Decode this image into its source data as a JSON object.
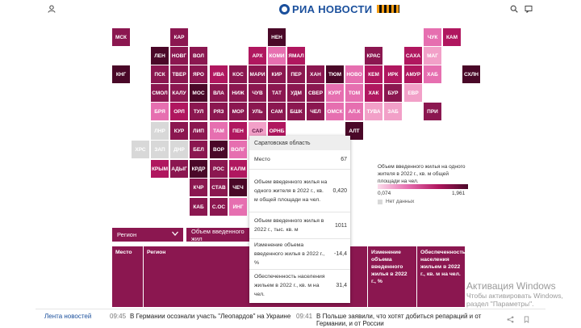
{
  "header": {
    "logo_text": "РИА НОВОСТИ"
  },
  "map": {
    "tiles": [
      {
        "label": "МСК",
        "col": 0,
        "row": 0,
        "color": "#8b1750",
        "text": "#ffffff"
      },
      {
        "label": "КАР",
        "col": 3,
        "row": 0,
        "color": "#8b1750",
        "text": "#ffffff"
      },
      {
        "label": "НЕН",
        "col": 8,
        "row": 0,
        "color": "#4a0828",
        "text": "#ffffff"
      },
      {
        "label": "ЧУК",
        "col": 16,
        "row": 0,
        "color": "#e66fb0",
        "text": "#ffffff"
      },
      {
        "label": "КАМ",
        "col": 17,
        "row": 0,
        "color": "#b0175f",
        "text": "#ffffff"
      },
      {
        "label": "ЛЕН",
        "col": 2,
        "row": 1,
        "color": "#4a0828",
        "text": "#ffffff"
      },
      {
        "label": "НОВГ",
        "col": 3,
        "row": 1,
        "color": "#8b1750",
        "text": "#ffffff"
      },
      {
        "label": "ВОЛ",
        "col": 4,
        "row": 1,
        "color": "#8b1750",
        "text": "#ffffff"
      },
      {
        "label": "АРХ",
        "col": 7,
        "row": 1,
        "color": "#b0175f",
        "text": "#ffffff"
      },
      {
        "label": "КОМИ",
        "col": 8,
        "row": 1,
        "color": "#e66fb0",
        "text": "#ffffff"
      },
      {
        "label": "ЯМАЛ",
        "col": 9,
        "row": 1,
        "color": "#b0175f",
        "text": "#ffffff"
      },
      {
        "label": "КРАС",
        "col": 13,
        "row": 1,
        "color": "#8b1750",
        "text": "#ffffff"
      },
      {
        "label": "САХА",
        "col": 15,
        "row": 1,
        "color": "#b0175f",
        "text": "#ffffff"
      },
      {
        "label": "МАГ",
        "col": 16,
        "row": 1,
        "color": "#f2a0c8",
        "text": "#ffffff"
      },
      {
        "label": "КНГ",
        "col": 0,
        "row": 2,
        "color": "#4a0828",
        "text": "#ffffff"
      },
      {
        "label": "ПСК",
        "col": 2,
        "row": 2,
        "color": "#8b1750",
        "text": "#ffffff"
      },
      {
        "label": "ТВЕР",
        "col": 3,
        "row": 2,
        "color": "#8b1750",
        "text": "#ffffff"
      },
      {
        "label": "ЯРО",
        "col": 4,
        "row": 2,
        "color": "#8b1750",
        "text": "#ffffff"
      },
      {
        "label": "ИВА",
        "col": 5,
        "row": 2,
        "color": "#b0175f",
        "text": "#ffffff"
      },
      {
        "label": "КОС",
        "col": 6,
        "row": 2,
        "color": "#8b1750",
        "text": "#ffffff"
      },
      {
        "label": "МАРИ",
        "col": 7,
        "row": 2,
        "color": "#8b1750",
        "text": "#ffffff"
      },
      {
        "label": "КИР",
        "col": 8,
        "row": 2,
        "color": "#8b1750",
        "text": "#ffffff"
      },
      {
        "label": "ПЕР",
        "col": 9,
        "row": 2,
        "color": "#8b1750",
        "text": "#ffffff"
      },
      {
        "label": "ХАН",
        "col": 10,
        "row": 2,
        "color": "#8b1750",
        "text": "#ffffff"
      },
      {
        "label": "ТЮМ",
        "col": 11,
        "row": 2,
        "color": "#4a0828",
        "text": "#ffffff"
      },
      {
        "label": "НОВО",
        "col": 12,
        "row": 2,
        "color": "#e66fb0",
        "text": "#ffffff"
      },
      {
        "label": "КЕМ",
        "col": 13,
        "row": 2,
        "color": "#b0175f",
        "text": "#ffffff"
      },
      {
        "label": "ИРК",
        "col": 14,
        "row": 2,
        "color": "#b0175f",
        "text": "#ffffff"
      },
      {
        "label": "АМУР",
        "col": 15,
        "row": 2,
        "color": "#b0175f",
        "text": "#ffffff"
      },
      {
        "label": "ХАБ",
        "col": 16,
        "row": 2,
        "color": "#e66fb0",
        "text": "#ffffff"
      },
      {
        "label": "СХЛН",
        "col": 18,
        "row": 2,
        "color": "#4a0828",
        "text": "#ffffff"
      },
      {
        "label": "СМОЛ",
        "col": 2,
        "row": 3,
        "color": "#8b1750",
        "text": "#ffffff"
      },
      {
        "label": "КАЛУ",
        "col": 3,
        "row": 3,
        "color": "#8b1750",
        "text": "#ffffff"
      },
      {
        "label": "МОС",
        "col": 4,
        "row": 3,
        "color": "#4a0828",
        "text": "#ffffff"
      },
      {
        "label": "ВЛА",
        "col": 5,
        "row": 3,
        "color": "#8b1750",
        "text": "#ffffff"
      },
      {
        "label": "НИЖ",
        "col": 6,
        "row": 3,
        "color": "#8b1750",
        "text": "#ffffff"
      },
      {
        "label": "ЧУВ",
        "col": 7,
        "row": 3,
        "color": "#8b1750",
        "text": "#ffffff"
      },
      {
        "label": "ТАТ",
        "col": 8,
        "row": 3,
        "color": "#8b1750",
        "text": "#ffffff"
      },
      {
        "label": "УДМ",
        "col": 9,
        "row": 3,
        "color": "#8b1750",
        "text": "#ffffff"
      },
      {
        "label": "СВЕР",
        "col": 10,
        "row": 3,
        "color": "#8b1750",
        "text": "#ffffff"
      },
      {
        "label": "КУРГ",
        "col": 11,
        "row": 3,
        "color": "#e66fb0",
        "text": "#ffffff"
      },
      {
        "label": "ТОМ",
        "col": 12,
        "row": 3,
        "color": "#e66fb0",
        "text": "#ffffff"
      },
      {
        "label": "ХАК",
        "col": 13,
        "row": 3,
        "color": "#b0175f",
        "text": "#ffffff"
      },
      {
        "label": "БУР",
        "col": 14,
        "row": 3,
        "color": "#8b1750",
        "text": "#ffffff"
      },
      {
        "label": "ЕВР",
        "col": 15,
        "row": 3,
        "color": "#f2a0c8",
        "text": "#ffffff"
      },
      {
        "label": "БРЯ",
        "col": 2,
        "row": 4,
        "color": "#e66fb0",
        "text": "#ffffff"
      },
      {
        "label": "ОРЛ",
        "col": 3,
        "row": 4,
        "color": "#b0175f",
        "text": "#ffffff"
      },
      {
        "label": "ТУЛ",
        "col": 4,
        "row": 4,
        "color": "#8b1750",
        "text": "#ffffff"
      },
      {
        "label": "РЯЗ",
        "col": 5,
        "row": 4,
        "color": "#8b1750",
        "text": "#ffffff"
      },
      {
        "label": "МОР",
        "col": 6,
        "row": 4,
        "color": "#8b1750",
        "text": "#ffffff"
      },
      {
        "label": "УЛЬ",
        "col": 7,
        "row": 4,
        "color": "#8b1750",
        "text": "#ffffff"
      },
      {
        "label": "САМ",
        "col": 8,
        "row": 4,
        "color": "#8b1750",
        "text": "#ffffff"
      },
      {
        "label": "БШК",
        "col": 9,
        "row": 4,
        "color": "#8b1750",
        "text": "#ffffff"
      },
      {
        "label": "ЧЕЛ",
        "col": 10,
        "row": 4,
        "color": "#8b1750",
        "text": "#ffffff"
      },
      {
        "label": "ОМСК",
        "col": 11,
        "row": 4,
        "color": "#e66fb0",
        "text": "#ffffff"
      },
      {
        "label": "АЛ.К",
        "col": 12,
        "row": 4,
        "color": "#e66fb0",
        "text": "#ffffff"
      },
      {
        "label": "ТУВА",
        "col": 13,
        "row": 4,
        "color": "#f2a0c8",
        "text": "#ffffff"
      },
      {
        "label": "ЗАБ",
        "col": 14,
        "row": 4,
        "color": "#f2a0c8",
        "text": "#ffffff"
      },
      {
        "label": "ПРИ",
        "col": 16,
        "row": 4,
        "color": "#8b1750",
        "text": "#ffffff"
      },
      {
        "label": "ЛНР",
        "col": 2,
        "row": 5,
        "color": "#d8d8d8",
        "text": "#ffffff"
      },
      {
        "label": "КУР",
        "col": 3,
        "row": 5,
        "color": "#8b1750",
        "text": "#ffffff"
      },
      {
        "label": "ЛИП",
        "col": 4,
        "row": 5,
        "color": "#8b1750",
        "text": "#ffffff"
      },
      {
        "label": "ТАМ",
        "col": 5,
        "row": 5,
        "color": "#e66fb0",
        "text": "#ffffff"
      },
      {
        "label": "ПЕН",
        "col": 6,
        "row": 5,
        "color": "#b0175f",
        "text": "#ffffff"
      },
      {
        "label": "САР",
        "col": 7,
        "row": 5,
        "color": "#f2a0c8",
        "text": "#5a1040"
      },
      {
        "label": "ОРНБ",
        "col": 8,
        "row": 5,
        "color": "#b0175f",
        "text": "#ffffff"
      },
      {
        "label": "АЛТ",
        "col": 12,
        "row": 5,
        "color": "#4a0828",
        "text": "#ffffff"
      },
      {
        "label": "ХРС",
        "col": 1,
        "row": 6,
        "color": "#d8d8d8",
        "text": "#ffffff"
      },
      {
        "label": "ЗАП",
        "col": 2,
        "row": 6,
        "color": "#d8d8d8",
        "text": "#ffffff"
      },
      {
        "label": "ДНР",
        "col": 3,
        "row": 6,
        "color": "#d8d8d8",
        "text": "#ffffff"
      },
      {
        "label": "БЕЛ",
        "col": 4,
        "row": 6,
        "color": "#8b1750",
        "text": "#ffffff"
      },
      {
        "label": "ВОР",
        "col": 5,
        "row": 6,
        "color": "#4a0828",
        "text": "#ffffff"
      },
      {
        "label": "ВОЛГ",
        "col": 6,
        "row": 6,
        "color": "#e66fb0",
        "text": "#ffffff"
      },
      {
        "label": "КРЫМ",
        "col": 2,
        "row": 7,
        "color": "#b0175f",
        "text": "#ffffff"
      },
      {
        "label": "АДЫГ",
        "col": 3,
        "row": 7,
        "color": "#8b1750",
        "text": "#ffffff"
      },
      {
        "label": "КРДР",
        "col": 4,
        "row": 7,
        "color": "#4a0828",
        "text": "#ffffff"
      },
      {
        "label": "РОС",
        "col": 5,
        "row": 7,
        "color": "#8b1750",
        "text": "#ffffff"
      },
      {
        "label": "КАЛМ",
        "col": 6,
        "row": 7,
        "color": "#b0175f",
        "text": "#ffffff"
      },
      {
        "label": "КЧР",
        "col": 4,
        "row": 8,
        "color": "#8b1750",
        "text": "#ffffff"
      },
      {
        "label": "СТАВ",
        "col": 5,
        "row": 8,
        "color": "#8b1750",
        "text": "#ffffff"
      },
      {
        "label": "ЧЕЧ",
        "col": 6,
        "row": 8,
        "color": "#4a0828",
        "text": "#ffffff"
      },
      {
        "label": "КАБ",
        "col": 4,
        "row": 9,
        "color": "#8b1750",
        "text": "#ffffff"
      },
      {
        "label": "С.ОС",
        "col": 5,
        "row": 9,
        "color": "#8b1750",
        "text": "#ffffff"
      },
      {
        "label": "ИНГ",
        "col": 6,
        "row": 9,
        "color": "#e66fb0",
        "text": "#ffffff"
      }
    ]
  },
  "tooltip": {
    "region": "Саратовская область",
    "rows": [
      {
        "label": "Место",
        "value": "67"
      },
      {
        "label": "Объем введенного жилья на одного жителя в 2022 г., кв. м общей площади на чел.",
        "value": "0,420"
      },
      {
        "label": "Объем введенного жилья в 2022 г., тыс. кв. м",
        "value": "1011"
      },
      {
        "label": "Изменение объема введенного жилья в 2022 г., %",
        "value": "-14,4"
      },
      {
        "label": "Обеспеченность населения жильем в 2022 г., кв. м на чел.",
        "value": "31,4"
      }
    ]
  },
  "legend": {
    "title": "Объем введенного жилья на одного жителя в 2022 г., кв. м общей площади на чел.",
    "min": "0,074",
    "max": "1,961",
    "no_data": "Нет данных"
  },
  "controls": {
    "region_dropdown": "Регион",
    "metric_dropdown": "Объем введенного жил"
  },
  "table": {
    "headers": [
      "Место",
      "Регион",
      "Изменение объема введенного жилья в 2022 г., %",
      "Обеспеченность населения жильем в 2022 г., кв. м на чел."
    ]
  },
  "footer": {
    "lenta": "Лента новостей",
    "news": [
      {
        "time": "09:45",
        "text": "В Германии осознали участь \"Леопардов\" на Украине"
      },
      {
        "time": "09:41",
        "text": "В Польше заявили, что хотят добиться репараций и от Германии, и от России"
      }
    ]
  },
  "watermark": {
    "title": "Активация Windows",
    "line1": "Чтобы активировать Windows,",
    "line2": "раздел \"Параметры\"."
  },
  "colors": {
    "brand": "#1a4f9c",
    "accent": "#8b1750"
  }
}
